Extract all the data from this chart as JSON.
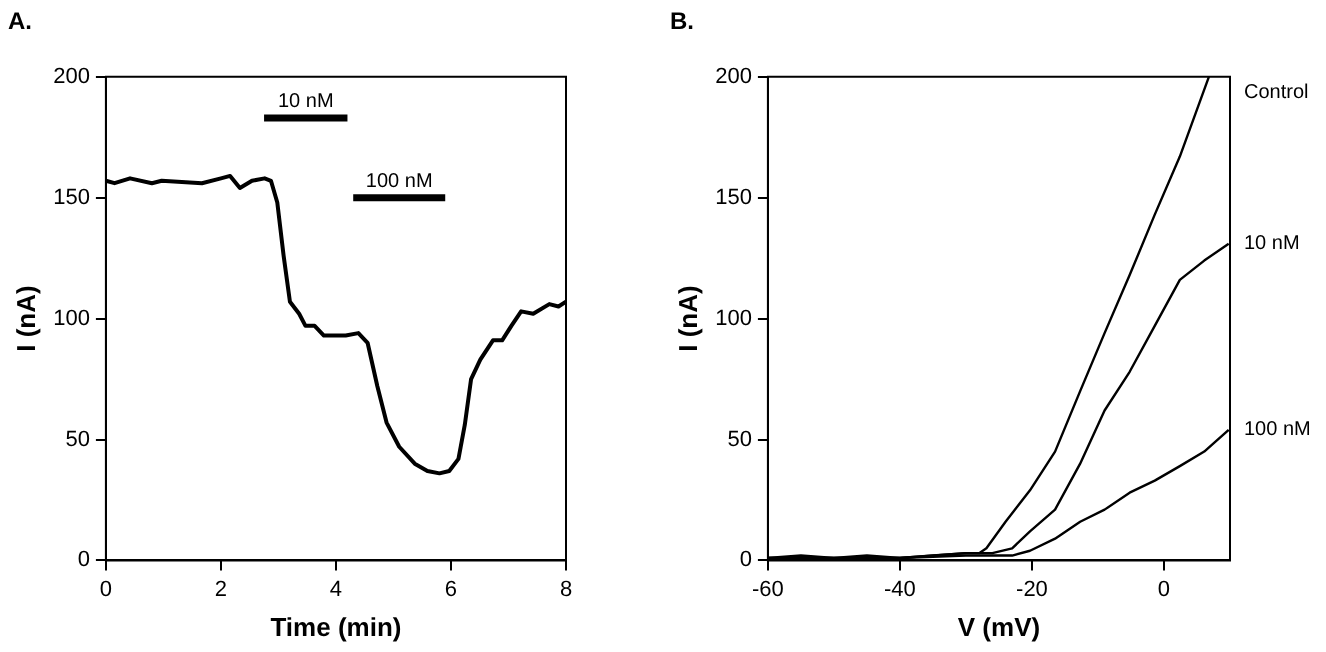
{
  "chart_data": [
    {
      "type": "line",
      "title": "A.",
      "xlabel": "Time (min)",
      "ylabel": "I (nA)",
      "xlim": [
        0,
        8
      ],
      "xticks": [
        0,
        2,
        4,
        6,
        8
      ],
      "ylim": [
        0,
        200
      ],
      "yticks": [
        0,
        50,
        100,
        150,
        200
      ],
      "grid": false,
      "legend": false,
      "marker": "none",
      "line_style": "solid",
      "series": [
        {
          "color": "#000000",
          "x": [
            0,
            0.15,
            0.42,
            0.8,
            0.97,
            1.67,
            2.0,
            2.16,
            2.33,
            2.54,
            2.76,
            2.87,
            2.98,
            3.09,
            3.2,
            3.36,
            3.47,
            3.63,
            3.79,
            3.96,
            4.17,
            4.39,
            4.55,
            4.72,
            4.88,
            5.1,
            5.37,
            5.59,
            5.8,
            5.97,
            6.13,
            6.24,
            6.35,
            6.51,
            6.73,
            6.89,
            7.05,
            7.22,
            7.43,
            7.71,
            7.87,
            8.0
          ],
          "values": [
            157,
            156,
            158,
            156,
            157,
            156,
            158,
            159,
            154,
            157,
            158,
            157,
            148,
            126,
            107,
            102,
            97,
            97,
            93,
            93,
            93,
            94,
            90,
            72,
            57,
            47,
            40,
            37,
            36,
            37,
            42,
            56,
            75,
            83,
            91,
            91,
            97,
            103,
            102,
            106,
            105,
            107
          ]
        },
        {
          "name": "10 nM",
          "color": "#000000",
          "x": [
            2.75,
            4.2
          ],
          "values": [
            183,
            183
          ]
        },
        {
          "name": "100 nM",
          "color": "#000000",
          "x": [
            4.3,
            5.9
          ],
          "values": [
            150,
            150
          ]
        }
      ]
    },
    {
      "type": "line",
      "title": "B.",
      "xlabel": "V (mV)",
      "ylabel": "I (nA)",
      "xlim": [
        -60,
        10
      ],
      "xticks": [
        -60,
        -40,
        -20,
        0
      ],
      "ylim": [
        0,
        200
      ],
      "yticks": [
        0,
        50,
        100,
        150,
        200
      ],
      "grid": false,
      "legend": false,
      "marker": "none",
      "line_style": "solid",
      "series": [
        {
          "name": "Control",
          "color": "#000000",
          "x": [
            -60,
            -55,
            -50,
            -45,
            -40,
            -35,
            -30,
            -28,
            -26.9,
            -24,
            -20.3,
            -16.5,
            -12.7,
            -9,
            -5.2,
            -1.4,
            2.4,
            6.8
          ],
          "values": [
            1,
            2,
            1,
            2,
            1,
            2,
            3,
            3,
            5,
            16,
            29,
            45,
            70,
            94,
            118,
            143,
            167,
            200
          ]
        },
        {
          "name": "10 nM",
          "color": "#000000",
          "x": [
            -60,
            -50,
            -40,
            -30,
            -26,
            -23,
            -20.3,
            -16.5,
            -12.7,
            -9,
            -5.2,
            -1.4,
            2.4,
            6.1,
            9.8
          ],
          "values": [
            1,
            1,
            1,
            3,
            3,
            5,
            12,
            21,
            40,
            62,
            78,
            97,
            116,
            124,
            131
          ]
        },
        {
          "name": "100 nM",
          "color": "#000000",
          "x": [
            -60,
            -50,
            -40,
            -30,
            -23,
            -20.3,
            -16.5,
            -12.7,
            -9,
            -5.2,
            -1.4,
            2.4,
            6.1,
            9.8
          ],
          "values": [
            1,
            1,
            1,
            2,
            2,
            4,
            9,
            16,
            21,
            28,
            33,
            39,
            45,
            54
          ]
        }
      ]
    }
  ]
}
